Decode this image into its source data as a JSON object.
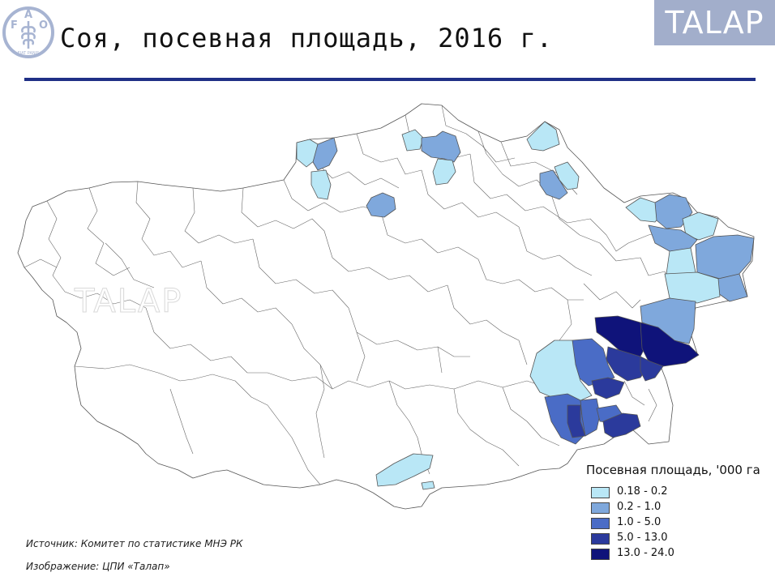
{
  "header": {
    "title": "Соя, посевная площадь, 2016 г.",
    "talap_label": "TALAP",
    "logo_letters": [
      "F",
      "A",
      "O"
    ],
    "logo_motto": "FIAT PANIS"
  },
  "map": {
    "watermark": "TALAP",
    "colors": {
      "land": "#ffffff",
      "border": "#555555",
      "class1": "#b9e7f6",
      "class2": "#7fa8dc",
      "class3": "#4a6cc6",
      "class4": "#2b3a9c",
      "class5": "#0f137a"
    }
  },
  "legend": {
    "title": "Посевная площадь, '000 га",
    "items": [
      {
        "label": "0.18 - 0.2",
        "color": "#b9e7f6"
      },
      {
        "label": "0.2 - 1.0",
        "color": "#7fa8dc"
      },
      {
        "label": "1.0 - 5.0",
        "color": "#4a6cc6"
      },
      {
        "label": "5.0 - 13.0",
        "color": "#2b3a9c"
      },
      {
        "label": "13.0 - 24.0",
        "color": "#0f137a"
      }
    ]
  },
  "footer": {
    "source": "Источник: Комитет по статистике МНЭ РК",
    "credit": "Изображение: ЦПИ «Талап»"
  }
}
